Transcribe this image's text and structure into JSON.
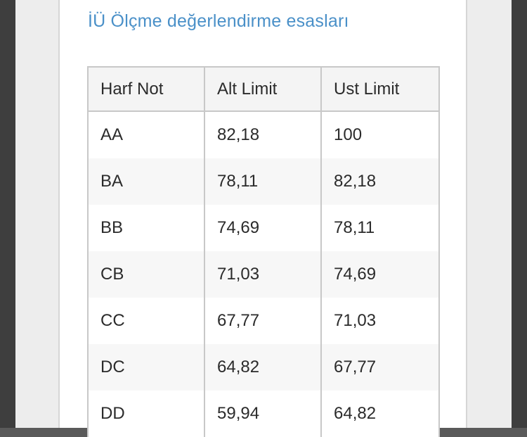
{
  "page": {
    "title_link": "İÜ Ölçme değerlendirme esasları"
  },
  "table": {
    "headers": [
      "Harf Not",
      "Alt Limit",
      "Ust Limit"
    ],
    "rows": [
      [
        "AA",
        "82,18",
        "100"
      ],
      [
        "BA",
        "78,11",
        "82,18"
      ],
      [
        "BB",
        "74,69",
        "78,11"
      ],
      [
        "CB",
        "71,03",
        "74,69"
      ],
      [
        "CC",
        "67,77",
        "71,03"
      ],
      [
        "DC",
        "64,82",
        "67,77"
      ],
      [
        "DD",
        "59,94",
        "64,82"
      ]
    ]
  },
  "colors": {
    "link": "#4a90c8",
    "header_bg": "#f4f4f4",
    "row_alt_bg": "#f7f7f7",
    "border": "#c8c8c8"
  }
}
